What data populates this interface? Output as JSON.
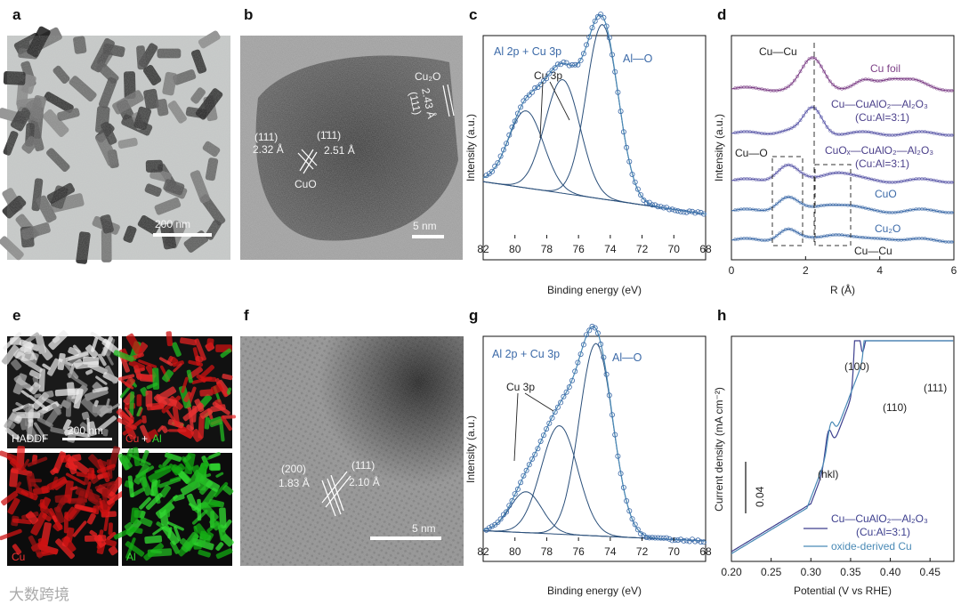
{
  "panels": {
    "a": "a",
    "b": "b",
    "c": "c",
    "d": "d",
    "e": "e",
    "f": "f",
    "g": "g",
    "h": "h"
  },
  "micro": {
    "a_scale": "200 nm",
    "b_scale": "5 nm",
    "b_cuo_planes": [
      "(111)",
      "2.32 Å",
      "(1̄11)",
      "2.51 Å"
    ],
    "b_cuo": "CuO",
    "b_cu2o": [
      "Cu₂O",
      "2.43 Å",
      "(111)"
    ],
    "e_labels": {
      "haadf": "HADDF",
      "scale": "200 nm",
      "cu_al_cu": "Cu",
      "cu_al_plus": " + ",
      "cu_al_al": "Al",
      "cu": "Cu",
      "al": "Al"
    },
    "f_scale": "5 nm",
    "f_planes": [
      "(200)",
      "1.83 Å",
      "(111)",
      "2.10 Å"
    ]
  },
  "chart_data": [
    {
      "panel": "c",
      "type": "line",
      "title": "Al 2p + Cu 3p",
      "xlabel": "Binding energy (eV)",
      "ylabel": "Intensity (a.u.)",
      "xlim": [
        82,
        68
      ],
      "xticks": [
        82,
        80,
        78,
        76,
        74,
        72,
        70,
        68
      ],
      "annotations": [
        "Cu 3p",
        "Al—O"
      ],
      "peaks": [
        {
          "center": 79.3,
          "height": 0.38,
          "width": 1.1
        },
        {
          "center": 77.0,
          "height": 0.56,
          "width": 1.1
        },
        {
          "center": 74.5,
          "height": 0.86,
          "width": 1.0
        }
      ],
      "background": {
        "start": 0.28,
        "end": 0.12
      },
      "colors": {
        "data": "#3c6aa8",
        "fit": "#2a4f7a",
        "envelope": "#4a8ab6"
      }
    },
    {
      "panel": "d",
      "type": "line",
      "xlabel": "R (Å)",
      "ylabel": "Intensity (a.u.)",
      "xlim": [
        0,
        6
      ],
      "xticks": [
        0,
        2,
        4,
        6
      ],
      "series": [
        {
          "name": "Cu foil",
          "color": "#7c3f86"
        },
        {
          "name": "Cu—CuAlO₂—Al₂O₃",
          "sub": "(Cu:Al=3:1)",
          "color": "#4a3f8a"
        },
        {
          "name": "CuOₓ—CuAlO₂—Al₂O₃",
          "sub": "(Cu:Al=3:1)",
          "color": "#4a3f8a"
        },
        {
          "name": "CuO",
          "color": "#3c6aa8"
        },
        {
          "name": "Cu₂O",
          "color": "#3c6aa8"
        }
      ],
      "annotations": [
        "Cu—Cu",
        "Cu—O",
        "Cu—Cu"
      ],
      "colors": {
        "data": "#5a58a8"
      }
    },
    {
      "panel": "g",
      "type": "line",
      "title": "Al 2p + Cu 3p",
      "xlabel": "Binding energy (eV)",
      "ylabel": "Intensity (a.u.)",
      "xlim": [
        82,
        68
      ],
      "xticks": [
        82,
        80,
        78,
        76,
        74,
        72,
        70,
        68
      ],
      "annotations": [
        "Cu 3p",
        "Al—O"
      ],
      "peaks": [
        {
          "center": 79.3,
          "height": 0.2,
          "width": 1.0
        },
        {
          "center": 77.2,
          "height": 0.53,
          "width": 1.15
        },
        {
          "center": 74.9,
          "height": 0.94,
          "width": 1.05
        }
      ],
      "background": {
        "start": 0.05,
        "end": 0.0
      },
      "colors": {
        "data": "#3c6aa8",
        "fit": "#2a4f7a",
        "envelope": "#4a8ab6"
      }
    },
    {
      "panel": "h",
      "type": "line",
      "xlabel": "Potential (V vs RHE)",
      "ylabel": "Current density (mA cm⁻²)",
      "xlim": [
        0.2,
        0.48
      ],
      "xticks": [
        0.2,
        0.25,
        0.3,
        0.35,
        0.4,
        0.45
      ],
      "scalebar": "0.04",
      "annotations": [
        "(hkl)",
        "(100)",
        "(110)",
        "(111)"
      ],
      "series": [
        {
          "name": "Cu—CuAlO₂—Al₂O₃",
          "sub": "(Cu:Al=3:1)",
          "color": "#3d3f8e"
        },
        {
          "name": "oxide-derived Cu",
          "color": "#4a8ab6"
        }
      ]
    }
  ],
  "watermark": "大数跨境"
}
